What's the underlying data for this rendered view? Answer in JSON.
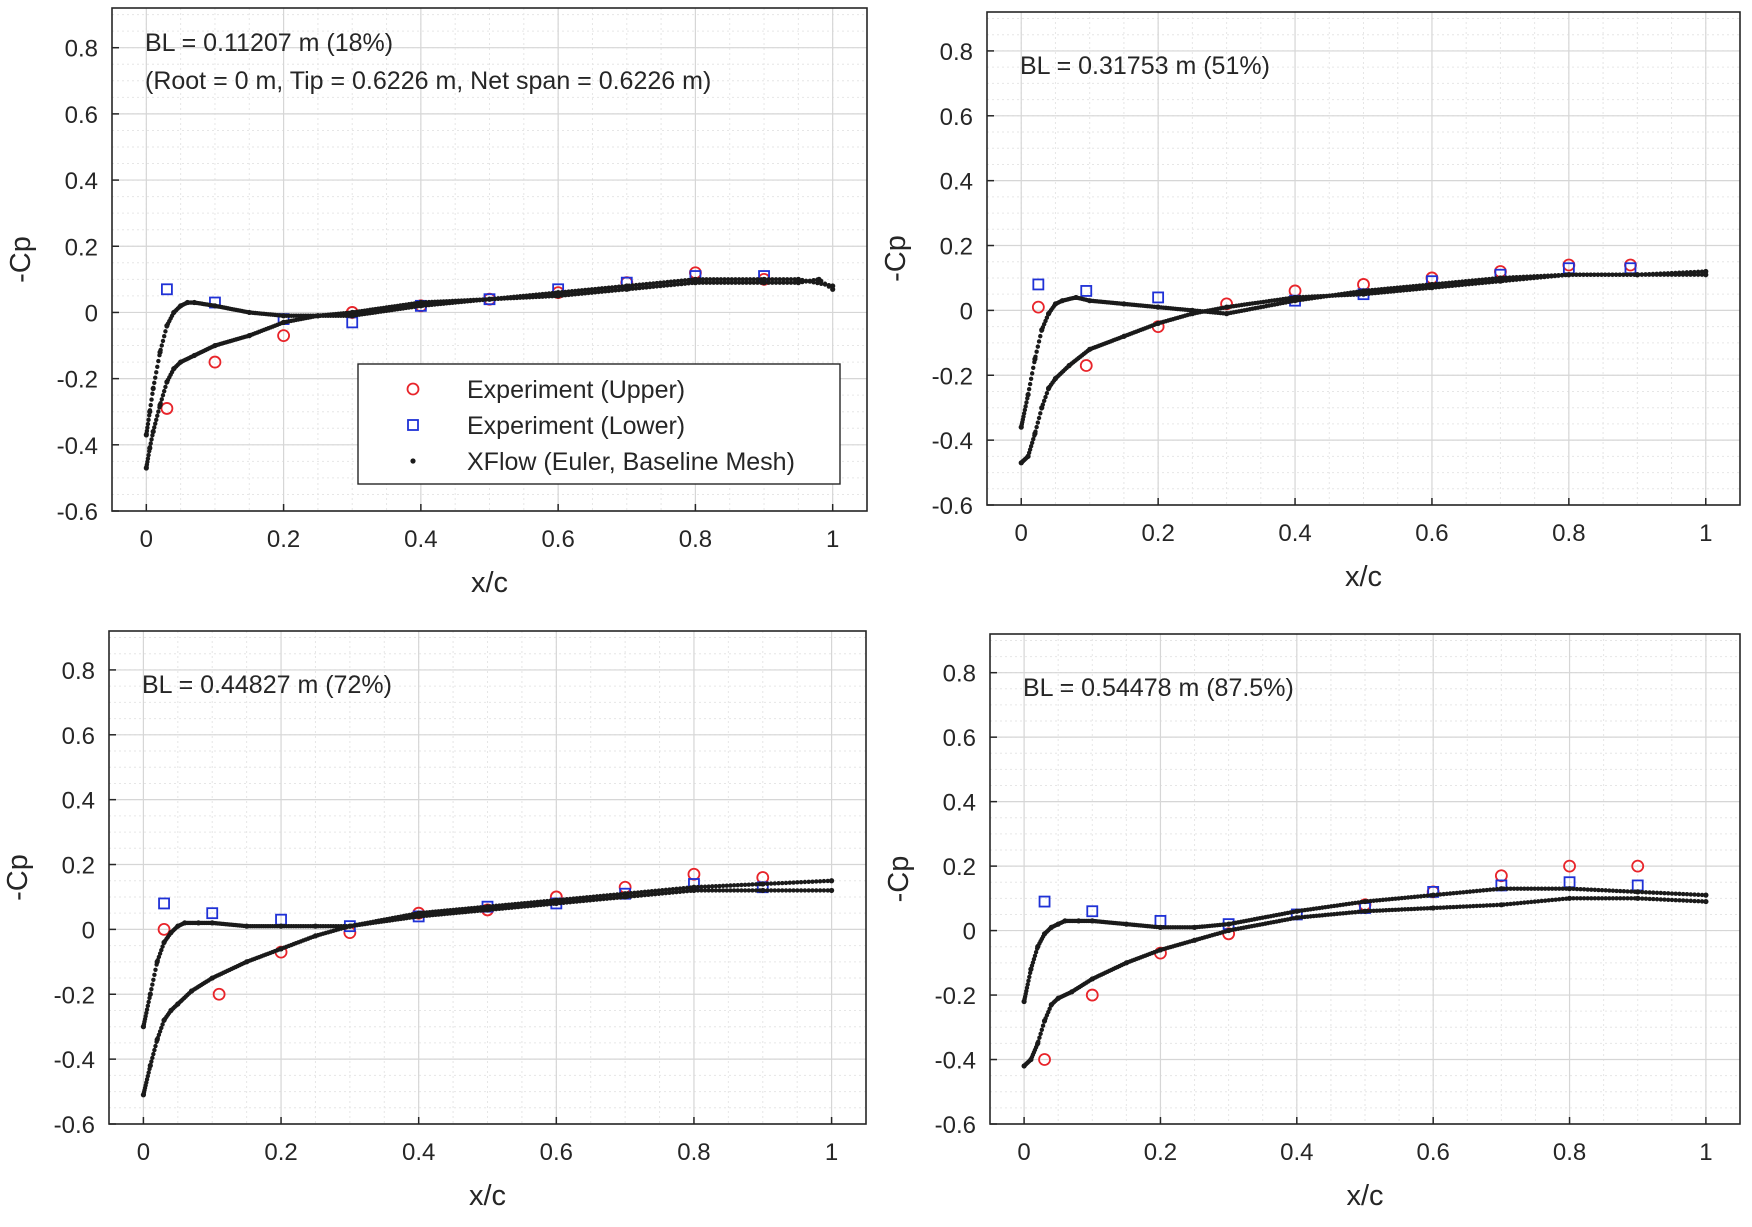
{
  "chart_data": [
    {
      "type": "scatter",
      "title": "",
      "annotations": [
        "BL = 0.11207 m (18%)",
        "(Root = 0 m, Tip = 0.6226 m, Net span = 0.6226 m)"
      ],
      "xlabel": "x/c",
      "ylabel": "-Cp",
      "xlim": [
        -0.05,
        1.05
      ],
      "ylim": [
        -0.6,
        0.92
      ],
      "xticks": [
        "0",
        "0.2",
        "0.4",
        "0.6",
        "0.8",
        "1"
      ],
      "yticks": [
        "-0.6",
        "-0.4",
        "-0.2",
        "0",
        "0.2",
        "0.4",
        "0.6",
        "0.8"
      ],
      "grid": true,
      "legend": {
        "placement": "center",
        "entries": [
          "Experiment (Upper)",
          "Experiment (Lower)",
          "XFlow (Euler, Baseline Mesh)"
        ]
      },
      "series": [
        {
          "name": "Experiment (Upper)",
          "marker": "circle",
          "x": [
            0.03,
            0.1,
            0.2,
            0.3,
            0.4,
            0.5,
            0.6,
            0.7,
            0.8,
            0.9
          ],
          "y": [
            -0.29,
            -0.15,
            -0.07,
            0.0,
            0.02,
            0.04,
            0.06,
            0.09,
            0.12,
            0.1
          ]
        },
        {
          "name": "Experiment (Lower)",
          "marker": "square",
          "x": [
            0.03,
            0.1,
            0.2,
            0.3,
            0.4,
            0.5,
            0.6,
            0.7,
            0.8,
            0.9
          ],
          "y": [
            0.07,
            0.03,
            -0.02,
            -0.03,
            0.02,
            0.04,
            0.07,
            0.09,
            0.11,
            0.11
          ]
        },
        {
          "name": "XFlow (Euler, Baseline Mesh) upper surface",
          "marker": "dot",
          "x": [
            0.0,
            0.005,
            0.01,
            0.02,
            0.03,
            0.04,
            0.05,
            0.07,
            0.1,
            0.15,
            0.2,
            0.25,
            0.3,
            0.4,
            0.5,
            0.6,
            0.7,
            0.8,
            0.9,
            0.95,
            0.98,
            1.0
          ],
          "y": [
            -0.47,
            -0.41,
            -0.36,
            -0.28,
            -0.21,
            -0.17,
            -0.15,
            -0.13,
            -0.1,
            -0.07,
            -0.03,
            -0.01,
            0.0,
            0.03,
            0.04,
            0.05,
            0.07,
            0.09,
            0.09,
            0.09,
            0.1,
            0.07
          ]
        },
        {
          "name": "XFlow (Euler, Baseline Mesh) lower surface",
          "marker": "dot",
          "x": [
            0.0,
            0.005,
            0.01,
            0.02,
            0.03,
            0.04,
            0.05,
            0.06,
            0.07,
            0.1,
            0.15,
            0.2,
            0.25,
            0.3,
            0.4,
            0.5,
            0.6,
            0.7,
            0.8,
            0.9,
            0.95,
            1.0
          ],
          "y": [
            -0.37,
            -0.3,
            -0.23,
            -0.12,
            -0.04,
            0.0,
            0.02,
            0.03,
            0.03,
            0.02,
            0.0,
            -0.01,
            -0.01,
            -0.01,
            0.02,
            0.04,
            0.06,
            0.08,
            0.1,
            0.1,
            0.1,
            0.08
          ]
        }
      ]
    },
    {
      "type": "scatter",
      "title": "",
      "annotations": [
        "BL = 0.31753 m (51%)"
      ],
      "xlabel": "x/c",
      "ylabel": "-Cp",
      "xlim": [
        -0.05,
        1.05
      ],
      "ylim": [
        -0.6,
        0.92
      ],
      "xticks": [
        "0",
        "0.2",
        "0.4",
        "0.6",
        "0.8",
        "1"
      ],
      "yticks": [
        "-0.6",
        "-0.4",
        "-0.2",
        "0",
        "0.2",
        "0.4",
        "0.6",
        "0.8"
      ],
      "grid": true,
      "series": [
        {
          "name": "Experiment (Upper)",
          "marker": "circle",
          "x": [
            0.025,
            0.095,
            0.2,
            0.3,
            0.4,
            0.5,
            0.6,
            0.7,
            0.8,
            0.89
          ],
          "y": [
            0.01,
            -0.17,
            -0.05,
            0.02,
            0.06,
            0.08,
            0.1,
            0.12,
            0.14,
            0.14
          ]
        },
        {
          "name": "Experiment (Lower)",
          "marker": "square",
          "x": [
            0.025,
            0.095,
            0.2,
            0.4,
            0.5,
            0.6,
            0.7,
            0.8,
            0.89
          ],
          "y": [
            0.08,
            0.06,
            0.04,
            0.03,
            0.05,
            0.09,
            0.11,
            0.13,
            0.13
          ]
        },
        {
          "name": "XFlow (Euler, Baseline Mesh) upper surface",
          "marker": "dot",
          "x": [
            0.0,
            0.01,
            0.02,
            0.03,
            0.04,
            0.05,
            0.07,
            0.1,
            0.15,
            0.2,
            0.25,
            0.3,
            0.4,
            0.5,
            0.6,
            0.7,
            0.8,
            0.9,
            1.0
          ],
          "y": [
            -0.47,
            -0.45,
            -0.38,
            -0.3,
            -0.24,
            -0.21,
            -0.17,
            -0.12,
            -0.08,
            -0.04,
            -0.01,
            0.01,
            0.04,
            0.05,
            0.07,
            0.09,
            0.11,
            0.11,
            0.12
          ]
        },
        {
          "name": "XFlow (Euler, Baseline Mesh) lower surface",
          "marker": "dot",
          "x": [
            0.0,
            0.01,
            0.02,
            0.03,
            0.04,
            0.05,
            0.06,
            0.08,
            0.1,
            0.15,
            0.2,
            0.25,
            0.3,
            0.4,
            0.5,
            0.6,
            0.7,
            0.8,
            0.9,
            1.0
          ],
          "y": [
            -0.36,
            -0.26,
            -0.15,
            -0.06,
            -0.01,
            0.02,
            0.03,
            0.04,
            0.03,
            0.02,
            0.01,
            0.0,
            -0.01,
            0.03,
            0.06,
            0.08,
            0.1,
            0.11,
            0.11,
            0.11
          ]
        }
      ]
    },
    {
      "type": "scatter",
      "title": "",
      "annotations": [
        "BL = 0.44827 m (72%)"
      ],
      "xlabel": "x/c",
      "ylabel": "-Cp",
      "xlim": [
        -0.05,
        1.05
      ],
      "ylim": [
        -0.6,
        0.92
      ],
      "xticks": [
        "0",
        "0.2",
        "0.4",
        "0.6",
        "0.8",
        "1"
      ],
      "yticks": [
        "-0.6",
        "-0.4",
        "-0.2",
        "0",
        "0.2",
        "0.4",
        "0.6",
        "0.8"
      ],
      "grid": true,
      "series": [
        {
          "name": "Experiment (Upper)",
          "marker": "circle",
          "x": [
            0.03,
            0.11,
            0.2,
            0.3,
            0.4,
            0.5,
            0.6,
            0.7,
            0.8,
            0.9
          ],
          "y": [
            0.0,
            -0.2,
            -0.07,
            -0.01,
            0.05,
            0.06,
            0.1,
            0.13,
            0.17,
            0.16
          ]
        },
        {
          "name": "Experiment (Lower)",
          "marker": "square",
          "x": [
            0.03,
            0.1,
            0.2,
            0.3,
            0.4,
            0.5,
            0.6,
            0.7,
            0.8,
            0.9
          ],
          "y": [
            0.08,
            0.05,
            0.03,
            0.01,
            0.04,
            0.07,
            0.08,
            0.11,
            0.14,
            0.13
          ]
        },
        {
          "name": "XFlow (Euler, Baseline Mesh) upper surface",
          "marker": "dot",
          "x": [
            0.0,
            0.01,
            0.02,
            0.03,
            0.04,
            0.05,
            0.07,
            0.1,
            0.15,
            0.2,
            0.25,
            0.3,
            0.4,
            0.5,
            0.6,
            0.7,
            0.8,
            0.9,
            1.0
          ],
          "y": [
            -0.51,
            -0.42,
            -0.34,
            -0.28,
            -0.25,
            -0.23,
            -0.19,
            -0.15,
            -0.1,
            -0.06,
            -0.02,
            0.01,
            0.04,
            0.06,
            0.08,
            0.1,
            0.12,
            0.12,
            0.12
          ]
        },
        {
          "name": "XFlow (Euler, Baseline Mesh) lower surface",
          "marker": "dot",
          "x": [
            0.0,
            0.01,
            0.02,
            0.03,
            0.04,
            0.05,
            0.06,
            0.08,
            0.1,
            0.15,
            0.2,
            0.25,
            0.3,
            0.4,
            0.5,
            0.6,
            0.7,
            0.8,
            0.9,
            1.0
          ],
          "y": [
            -0.3,
            -0.2,
            -0.1,
            -0.04,
            -0.01,
            0.01,
            0.02,
            0.02,
            0.02,
            0.01,
            0.01,
            0.01,
            0.01,
            0.05,
            0.07,
            0.09,
            0.11,
            0.13,
            0.14,
            0.15
          ]
        }
      ]
    },
    {
      "type": "scatter",
      "title": "",
      "annotations": [
        "BL = 0.54478 m (87.5%)"
      ],
      "xlabel": "x/c",
      "ylabel": "-Cp",
      "xlim": [
        -0.05,
        1.05
      ],
      "ylim": [
        -0.6,
        0.92
      ],
      "xticks": [
        "0",
        "0.2",
        "0.4",
        "0.6",
        "0.8",
        "1"
      ],
      "yticks": [
        "-0.6",
        "-0.4",
        "-0.2",
        "0",
        "0.2",
        "0.4",
        "0.6",
        "0.8"
      ],
      "grid": true,
      "series": [
        {
          "name": "Experiment (Upper)",
          "marker": "circle",
          "x": [
            0.03,
            0.1,
            0.2,
            0.3,
            0.5,
            0.6,
            0.7,
            0.8,
            0.9
          ],
          "y": [
            -0.4,
            -0.2,
            -0.07,
            -0.01,
            0.08,
            0.12,
            0.17,
            0.2,
            0.2
          ]
        },
        {
          "name": "Experiment (Lower)",
          "marker": "square",
          "x": [
            0.03,
            0.1,
            0.2,
            0.3,
            0.4,
            0.5,
            0.6,
            0.7,
            0.8,
            0.9
          ],
          "y": [
            0.09,
            0.06,
            0.03,
            0.02,
            0.05,
            0.07,
            0.12,
            0.14,
            0.15,
            0.14
          ]
        },
        {
          "name": "XFlow (Euler, Baseline Mesh) upper surface",
          "marker": "dot",
          "x": [
            0.0,
            0.01,
            0.02,
            0.03,
            0.04,
            0.05,
            0.07,
            0.1,
            0.15,
            0.2,
            0.25,
            0.3,
            0.4,
            0.5,
            0.6,
            0.7,
            0.8,
            0.9,
            1.0
          ],
          "y": [
            -0.42,
            -0.4,
            -0.35,
            -0.28,
            -0.23,
            -0.21,
            -0.19,
            -0.15,
            -0.1,
            -0.06,
            -0.03,
            0.0,
            0.04,
            0.06,
            0.07,
            0.08,
            0.1,
            0.1,
            0.09
          ]
        },
        {
          "name": "XFlow (Euler, Baseline Mesh) lower surface",
          "marker": "dot",
          "x": [
            0.0,
            0.01,
            0.02,
            0.03,
            0.04,
            0.05,
            0.06,
            0.08,
            0.1,
            0.15,
            0.2,
            0.25,
            0.3,
            0.4,
            0.5,
            0.6,
            0.7,
            0.8,
            0.9,
            1.0
          ],
          "y": [
            -0.22,
            -0.12,
            -0.05,
            -0.01,
            0.01,
            0.02,
            0.03,
            0.03,
            0.03,
            0.02,
            0.01,
            0.01,
            0.02,
            0.06,
            0.09,
            0.11,
            0.13,
            0.13,
            0.12,
            0.11
          ]
        }
      ]
    }
  ],
  "colors": {
    "upper": "#e8242a",
    "lower": "#1f31d6",
    "xflow": "#1a1a1a",
    "grid_major": "#d6d6d6",
    "grid_minor": "#e6e6e6"
  }
}
